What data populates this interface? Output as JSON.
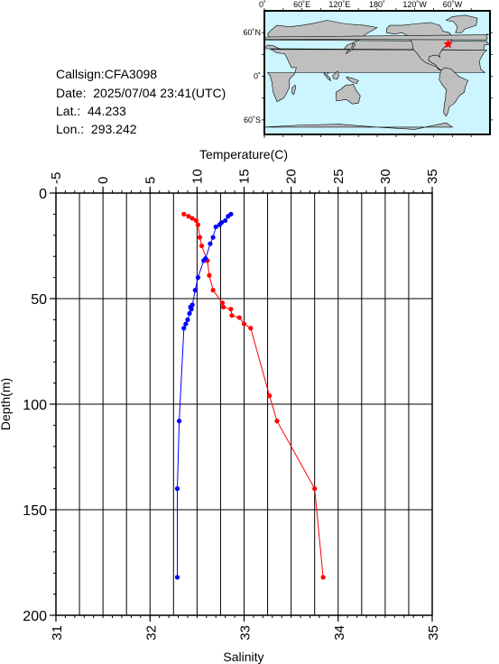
{
  "station": {
    "callsign": "Callsign:CFA3098",
    "date": "Date:  2025/07/04 23:41(UTC)",
    "lat": "Lat.:  44.233",
    "lon": "Lon.:  293.242"
  },
  "map": {
    "top_labels": [
      "0˚",
      "60˚E",
      "120˚E",
      "180˚",
      "120˚W",
      "60˚W"
    ],
    "left_labels": [
      "60˚N",
      "0˚",
      "60˚S"
    ],
    "ocean_color": "#ccf5ff",
    "land_color": "#bfbfbf",
    "marker_color": "#ff0000",
    "marker_lon": 293.242,
    "marker_lat": 44.233
  },
  "chart_data": {
    "type": "line",
    "xlabel_top": "Temperature(C)",
    "xlabel_bottom": "Salinity",
    "ylabel": "Depth(m)",
    "temperature_range": [
      -5,
      35
    ],
    "salinity_range": [
      31,
      35
    ],
    "depth_range": [
      0,
      200
    ],
    "y_inverted": true,
    "temperature_ticks": [
      "-5",
      "0",
      "5",
      "10",
      "15",
      "20",
      "25",
      "30",
      "35"
    ],
    "salinity_ticks": [
      "31",
      "32",
      "33",
      "34",
      "35"
    ],
    "depth_ticks": [
      "0",
      "50",
      "100",
      "150",
      "200"
    ],
    "grid": true,
    "series": [
      {
        "color": "#ff0000",
        "axis": "temperature",
        "points": [
          [
            8.6,
            10
          ],
          [
            9.1,
            11
          ],
          [
            9.5,
            12
          ],
          [
            9.9,
            13
          ],
          [
            10.1,
            15
          ],
          [
            10.3,
            21
          ],
          [
            10.5,
            25
          ],
          [
            11.1,
            32
          ],
          [
            11.3,
            39
          ],
          [
            11.7,
            46
          ],
          [
            12.7,
            52
          ],
          [
            12.8,
            54
          ],
          [
            13.6,
            55
          ],
          [
            13.7,
            58
          ],
          [
            14.5,
            59
          ],
          [
            15.0,
            62
          ],
          [
            15.7,
            64
          ],
          [
            17.7,
            96
          ],
          [
            18.5,
            108
          ],
          [
            22.5,
            140
          ],
          [
            23.4,
            182
          ]
        ]
      },
      {
        "color": "#0000ff",
        "axis": "salinity",
        "points": [
          [
            32.86,
            10
          ],
          [
            32.83,
            11
          ],
          [
            32.8,
            13
          ],
          [
            32.76,
            14
          ],
          [
            32.74,
            15
          ],
          [
            32.7,
            16
          ],
          [
            32.67,
            21
          ],
          [
            32.64,
            24
          ],
          [
            32.59,
            31
          ],
          [
            32.57,
            32
          ],
          [
            32.51,
            40
          ],
          [
            32.48,
            46
          ],
          [
            32.45,
            53
          ],
          [
            32.43,
            54
          ],
          [
            32.44,
            55
          ],
          [
            32.42,
            57
          ],
          [
            32.4,
            60
          ],
          [
            32.38,
            62
          ],
          [
            32.36,
            64
          ],
          [
            32.31,
            108
          ],
          [
            32.29,
            140
          ],
          [
            32.29,
            182
          ]
        ]
      }
    ]
  }
}
